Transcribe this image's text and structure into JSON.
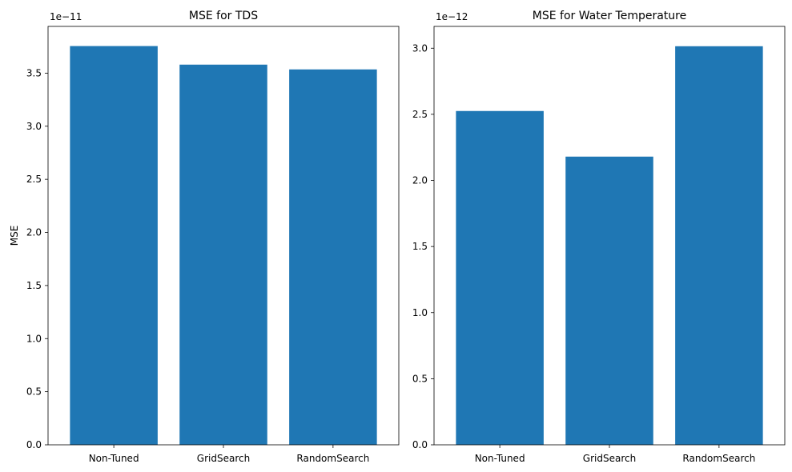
{
  "chart_data": [
    {
      "type": "bar",
      "title": "MSE for TDS",
      "xlabel": "",
      "ylabel": "MSE",
      "offset_text": "1e−11",
      "categories": [
        "Non-Tuned",
        "GridSearch",
        "RandomSearch"
      ],
      "values": [
        3.755,
        3.58,
        3.535
      ],
      "ylim": [
        0,
        3.94
      ],
      "yticks": [
        0.0,
        0.5,
        1.0,
        1.5,
        2.0,
        2.5,
        3.0,
        3.5
      ],
      "ytick_labels": [
        "0.0",
        "0.5",
        "1.0",
        "1.5",
        "2.0",
        "2.5",
        "3.0",
        "3.5"
      ],
      "bar_color": "#1f77b4",
      "grid": false
    },
    {
      "type": "bar",
      "title": "MSE for Water Temperature",
      "xlabel": "",
      "ylabel": "",
      "offset_text": "1e−12",
      "categories": [
        "Non-Tuned",
        "GridSearch",
        "RandomSearch"
      ],
      "values": [
        2.525,
        2.18,
        3.015
      ],
      "ylim": [
        0,
        3.165
      ],
      "yticks": [
        0.0,
        0.5,
        1.0,
        1.5,
        2.0,
        2.5,
        3.0
      ],
      "ytick_labels": [
        "0.0",
        "0.5",
        "1.0",
        "1.5",
        "2.0",
        "2.5",
        "3.0"
      ],
      "bar_color": "#1f77b4",
      "grid": false
    }
  ]
}
